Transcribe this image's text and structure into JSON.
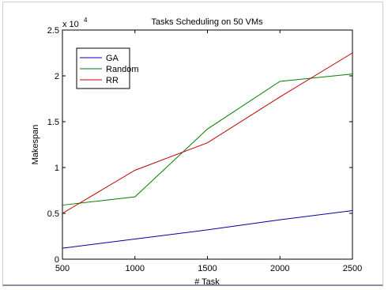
{
  "chart_data": {
    "type": "line",
    "title": "Tasks Scheduling on 50 VMs",
    "xlabel": "# Task",
    "ylabel": "Makespan",
    "y_multiplier_label": "x 10",
    "y_multiplier_exponent": "4",
    "x": [
      500,
      1000,
      1500,
      2000,
      2500
    ],
    "xlim": [
      500,
      2500
    ],
    "ylim": [
      0,
      25000
    ],
    "x_ticks": [
      "500",
      "1000",
      "1500",
      "2000",
      "2500"
    ],
    "y_ticks": [
      "0",
      "0.5",
      "1",
      "1.5",
      "2",
      "2.5"
    ],
    "y_tick_values": [
      0,
      5000,
      10000,
      15000,
      20000,
      25000
    ],
    "grid": false,
    "legend_position": "top-left",
    "series": [
      {
        "name": "GA",
        "color": "#0000a8",
        "values": [
          1200,
          2200,
          3200,
          4300,
          5300
        ]
      },
      {
        "name": "Random",
        "color": "#007f00",
        "values": [
          5900,
          6800,
          14200,
          19400,
          20200
        ]
      },
      {
        "name": "RR",
        "color": "#c00000",
        "values": [
          5000,
          9700,
          12700,
          17700,
          22500
        ]
      }
    ]
  }
}
